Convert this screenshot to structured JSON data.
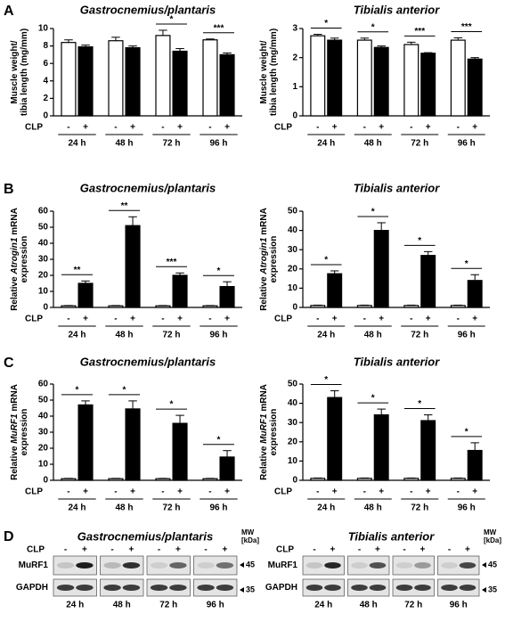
{
  "chart_data": [
    {
      "type": "bar",
      "panel": "A",
      "title": "Gastrocnemius/plantaris",
      "ylabel": [
        [
          "Muscle weight/"
        ],
        [
          "tibia length (mg/mm)"
        ]
      ],
      "group_label": "CLP",
      "categories": [
        "24 h",
        "48 h",
        "72 h",
        "96 h"
      ],
      "series": [
        {
          "name": "-",
          "color": "#ffffff",
          "values": [
            8.4,
            8.6,
            9.2,
            8.7
          ],
          "errors": [
            0.3,
            0.4,
            0.6,
            0.1
          ]
        },
        {
          "name": "+",
          "color": "#000000",
          "values": [
            7.9,
            7.8,
            7.4,
            7.0
          ],
          "errors": [
            0.2,
            0.2,
            0.3,
            0.2
          ]
        }
      ],
      "significance": [
        null,
        null,
        "*",
        "***"
      ],
      "ylim": [
        0,
        10
      ],
      "yticks": [
        0,
        2,
        4,
        6,
        8,
        10
      ]
    },
    {
      "type": "bar",
      "title": "Tibialis anterior",
      "ylabel": [
        [
          "Muscle weight/"
        ],
        [
          "tibia length (mg/mm)"
        ]
      ],
      "group_label": "CLP",
      "categories": [
        "24 h",
        "48 h",
        "72 h",
        "96 h"
      ],
      "series": [
        {
          "name": "-",
          "color": "#ffffff",
          "values": [
            2.75,
            2.6,
            2.45,
            2.6
          ],
          "errors": [
            0.05,
            0.07,
            0.08,
            0.08
          ]
        },
        {
          "name": "+",
          "color": "#000000",
          "values": [
            2.6,
            2.35,
            2.15,
            1.95
          ],
          "errors": [
            0.07,
            0.05,
            0.02,
            0.05
          ]
        }
      ],
      "significance": [
        "*",
        "*",
        "***",
        "***"
      ],
      "ylim": [
        0,
        3
      ],
      "yticks": [
        0,
        1,
        2,
        3
      ]
    },
    {
      "type": "bar",
      "panel": "B",
      "title": "Gastrocnemius/plantaris",
      "ylabel": [
        [
          "Relative ",
          "Atrogin1",
          " mRNA"
        ],
        [
          "expression"
        ]
      ],
      "group_label": "CLP",
      "categories": [
        "24 h",
        "48 h",
        "72 h",
        "96 h"
      ],
      "series": [
        {
          "name": "-",
          "color": "#ffffff",
          "values": [
            1,
            1,
            1,
            1
          ],
          "errors": [
            0.2,
            0.2,
            0.2,
            0.2
          ]
        },
        {
          "name": "+",
          "color": "#000000",
          "values": [
            15,
            51,
            20,
            13
          ],
          "errors": [
            1.5,
            5.5,
            1.5,
            3
          ]
        }
      ],
      "significance": [
        "**",
        "**",
        "***",
        "*"
      ],
      "ylim": [
        0,
        60
      ],
      "yticks": [
        0,
        10,
        20,
        30,
        40,
        50,
        60
      ]
    },
    {
      "type": "bar",
      "title": "Tibialis anterior",
      "ylabel": [
        [
          "Relative ",
          "Atrogin1",
          " mRNA"
        ],
        [
          "expression"
        ]
      ],
      "group_label": "CLP",
      "categories": [
        "24 h",
        "48 h",
        "72 h",
        "96 h"
      ],
      "series": [
        {
          "name": "-",
          "color": "#ffffff",
          "values": [
            1,
            1,
            1,
            1
          ],
          "errors": [
            0.2,
            0.2,
            0.2,
            0.2
          ]
        },
        {
          "name": "+",
          "color": "#000000",
          "values": [
            17.5,
            40,
            27,
            14
          ],
          "errors": [
            1.5,
            4,
            2,
            3
          ]
        }
      ],
      "significance": [
        "*",
        "*",
        "*",
        "*"
      ],
      "ylim": [
        0,
        50
      ],
      "yticks": [
        0,
        10,
        20,
        30,
        40,
        50
      ]
    },
    {
      "type": "bar",
      "panel": "C",
      "title": "Gastrocnemius/plantaris",
      "ylabel": [
        [
          "Relative ",
          "MuRF1",
          " mRNA"
        ],
        [
          "expression"
        ]
      ],
      "group_label": "CLP",
      "categories": [
        "24 h",
        "48 h",
        "72 h",
        "96 h"
      ],
      "series": [
        {
          "name": "-",
          "color": "#ffffff",
          "values": [
            1,
            1,
            1,
            1
          ],
          "errors": [
            0.2,
            0.2,
            0.2,
            0.2
          ]
        },
        {
          "name": "+",
          "color": "#000000",
          "values": [
            47,
            44.5,
            35.5,
            14.5
          ],
          "errors": [
            2.5,
            5,
            5,
            4
          ]
        }
      ],
      "significance": [
        "*",
        "*",
        "*",
        "*"
      ],
      "ylim": [
        0,
        60
      ],
      "yticks": [
        0,
        10,
        20,
        30,
        40,
        50,
        60
      ]
    },
    {
      "type": "bar",
      "title": "Tibialis anterior",
      "ylabel": [
        [
          "Relative ",
          "MuRF1",
          " mRNA"
        ],
        [
          "expression"
        ]
      ],
      "group_label": "CLP",
      "categories": [
        "24 h",
        "48 h",
        "72 h",
        "96 h"
      ],
      "series": [
        {
          "name": "-",
          "color": "#ffffff",
          "values": [
            1,
            1,
            1,
            1
          ],
          "errors": [
            0.2,
            0.2,
            0.2,
            0.2
          ]
        },
        {
          "name": "+",
          "color": "#000000",
          "values": [
            43,
            34,
            31,
            15.5
          ],
          "errors": [
            3.5,
            3,
            3,
            4
          ]
        }
      ],
      "significance": [
        "*",
        "*",
        "*",
        "*"
      ],
      "ylim": [
        0,
        50
      ],
      "yticks": [
        0,
        10,
        20,
        30,
        40,
        50
      ]
    }
  ],
  "blots": [
    {
      "panel": "D",
      "title": "Gastrocnemius/plantaris",
      "condition_label": "CLP",
      "conditions": [
        "-",
        "+"
      ],
      "rows": [
        "MuRF1",
        "GAPDH"
      ],
      "times": [
        "24 h",
        "48 h",
        "72 h",
        "96 h"
      ],
      "mw_label": [
        "MW",
        "[kDa]"
      ],
      "mw_markers": [
        "45",
        "35"
      ]
    },
    {
      "title": "Tibialis anterior",
      "condition_label": "CLP",
      "conditions": [
        "-",
        "+"
      ],
      "rows": [
        "MuRF1",
        "GAPDH"
      ],
      "times": [
        "24 h",
        "48 h",
        "72 h",
        "96 h"
      ],
      "mw_label": [
        "MW",
        "[kDa]"
      ],
      "mw_markers": [
        "45",
        "35"
      ]
    }
  ]
}
